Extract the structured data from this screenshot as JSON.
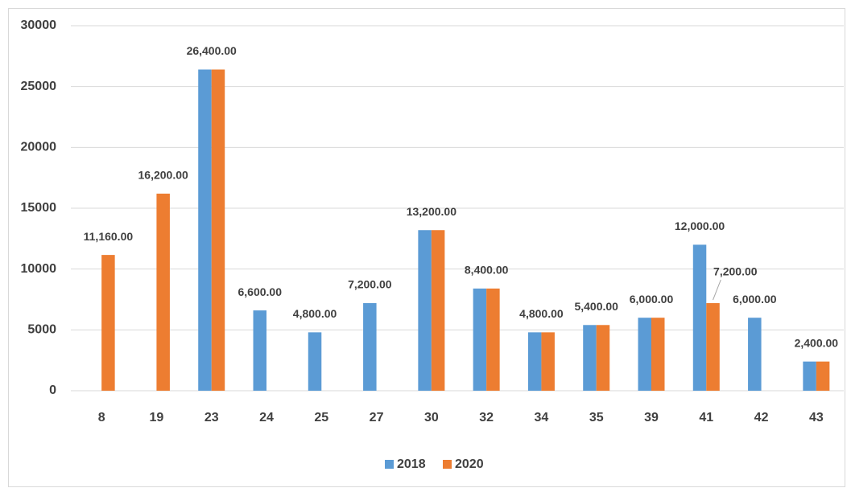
{
  "chart_data": {
    "type": "bar",
    "categories": [
      "8",
      "19",
      "23",
      "24",
      "25",
      "27",
      "30",
      "32",
      "34",
      "35",
      "39",
      "41",
      "42",
      "43"
    ],
    "series": [
      {
        "name": "2018",
        "color": "#5b9bd5",
        "values": [
          null,
          null,
          26400,
          6600,
          4800,
          7200,
          13200,
          8400,
          4800,
          5400,
          6000,
          12000,
          6000,
          2400
        ],
        "value_labels": [
          null,
          null,
          "26,400.00",
          "6,600.00",
          "4,800.00",
          "7,200.00",
          "13,200.00",
          "8,400.00",
          "4,800.00",
          "5,400.00",
          "6,000.00",
          "12,000.00",
          "6,000.00",
          "2,400.00"
        ]
      },
      {
        "name": "2020",
        "color": "#ed7d31",
        "values": [
          11160,
          16200,
          26400,
          null,
          null,
          null,
          13200,
          8400,
          4800,
          5400,
          6000,
          7200,
          null,
          2400
        ],
        "value_labels": [
          "11,160.00",
          "16,200.00",
          null,
          null,
          null,
          null,
          null,
          null,
          null,
          null,
          null,
          "7,200.00",
          null,
          null
        ]
      }
    ],
    "ylim": [
      0,
      30000
    ],
    "yticks": [
      0,
      5000,
      10000,
      15000,
      20000,
      25000,
      30000
    ],
    "grid": true,
    "legend": "bottom"
  }
}
